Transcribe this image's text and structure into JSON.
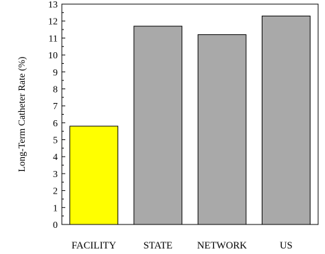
{
  "chart_data": {
    "type": "bar",
    "categories": [
      "FACILITY",
      "STATE",
      "NETWORK",
      "US"
    ],
    "values": [
      5.8,
      11.7,
      11.2,
      12.3
    ],
    "bar_colors": [
      "#ffff00",
      "#a9a9a9",
      "#a9a9a9",
      "#a9a9a9"
    ],
    "ylabel": "Long-Term Catheter Rate (%)",
    "xlabel": "",
    "ylim": [
      0,
      13
    ],
    "yticks": [
      0,
      1,
      2,
      3,
      4,
      5,
      6,
      7,
      8,
      9,
      10,
      11,
      12,
      13
    ],
    "grid": false
  }
}
